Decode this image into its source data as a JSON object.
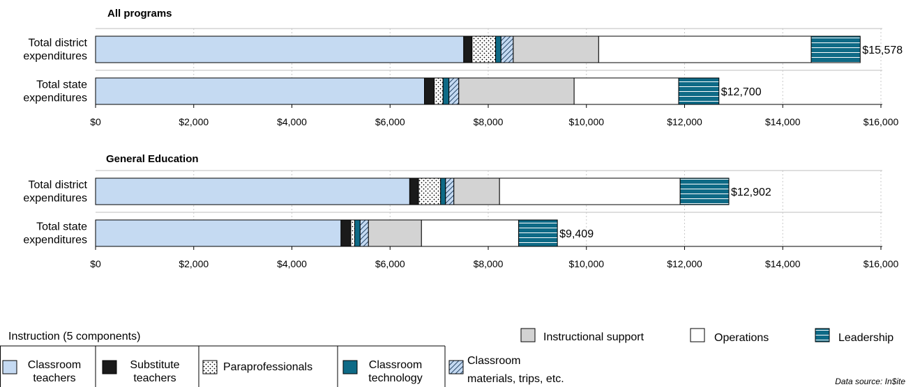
{
  "chart_data": [
    {
      "type": "bar",
      "orientation": "horizontal",
      "stacked": true,
      "title": "All programs",
      "xlim": [
        0,
        16000
      ],
      "x_ticks": [
        "$0",
        "$2,000",
        "$4,000",
        "$6,000",
        "$8,000",
        "$10,000",
        "$12,000",
        "$14,000",
        "$16,000"
      ],
      "rows": [
        {
          "label_lines": [
            "Total district",
            "expenditures"
          ],
          "total_label": "$15,578",
          "values": [
            7500,
            170,
            480,
            110,
            250,
            1740,
            4330,
            998
          ]
        },
        {
          "label_lines": [
            "Total state",
            "expenditures"
          ],
          "total_label": "$12,700",
          "values": [
            6700,
            200,
            180,
            120,
            200,
            2350,
            2130,
            820
          ]
        }
      ]
    },
    {
      "type": "bar",
      "orientation": "horizontal",
      "stacked": true,
      "title": "General Education",
      "xlim": [
        0,
        16000
      ],
      "x_ticks": [
        "$0",
        "$2,000",
        "$4,000",
        "$6,000",
        "$8,000",
        "$10,000",
        "$12,000",
        "$14,000",
        "$16,000"
      ],
      "rows": [
        {
          "label_lines": [
            "Total district",
            "expenditures"
          ],
          "total_label": "$12,902",
          "values": [
            6400,
            180,
            450,
            100,
            170,
            930,
            3680,
            992
          ]
        },
        {
          "label_lines": [
            "Total state",
            "expenditures"
          ],
          "total_label": "$9,409",
          "values": [
            5000,
            200,
            80,
            110,
            170,
            1080,
            1980,
            789
          ]
        }
      ]
    }
  ],
  "components": [
    {
      "key": "teachers",
      "fill": "#c5daf2",
      "pattern": "solid"
    },
    {
      "key": "substitute",
      "fill": "#1a1a1a",
      "pattern": "solid"
    },
    {
      "key": "para",
      "fill": "#ffffff",
      "pattern": "dots"
    },
    {
      "key": "tech",
      "fill": "#0e6a86",
      "pattern": "solid"
    },
    {
      "key": "materials",
      "fill": "#c5daf2",
      "pattern": "diagonal"
    },
    {
      "key": "support",
      "fill": "#d3d3d3",
      "pattern": "solid"
    },
    {
      "key": "operations",
      "fill": "#ffffff",
      "pattern": "solid"
    },
    {
      "key": "leadership",
      "fill": "#0e6a86",
      "pattern": "hlines"
    }
  ],
  "legend": {
    "instruction_group": "Instruction (5 components)",
    "items": [
      {
        "key": "teachers",
        "lines": [
          "Classroom",
          "teachers"
        ]
      },
      {
        "key": "substitute",
        "lines": [
          "Substitute",
          "teachers"
        ]
      },
      {
        "key": "para",
        "lines": [
          "Paraprofessionals"
        ]
      },
      {
        "key": "tech",
        "lines": [
          "Classroom",
          "technology"
        ]
      },
      {
        "key": "materials",
        "lines": [
          "Classroom",
          "materials, trips, etc."
        ]
      },
      {
        "key": "support",
        "lines": [
          "Instructional support"
        ]
      },
      {
        "key": "operations",
        "lines": [
          "Operations"
        ]
      },
      {
        "key": "leadership",
        "lines": [
          "Leadership"
        ]
      }
    ]
  },
  "source": "Data source: In$ite"
}
